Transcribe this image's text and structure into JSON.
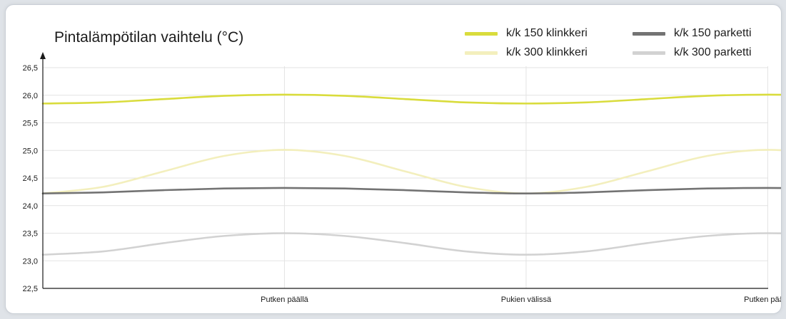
{
  "chart_data": {
    "type": "line",
    "title": "Pintalämpötilan vaihtelu (°C)",
    "xlabel": "",
    "ylabel": "",
    "ylim": [
      22.5,
      26.5
    ],
    "yticks": [
      "26,5",
      "26,0",
      "25,5",
      "25,0",
      "24,5",
      "24,0",
      "23,5",
      "23,0",
      "22,5"
    ],
    "categories": [
      "Putken päällä",
      "Pukien välissä",
      "Putken päällä"
    ],
    "x_range": [
      0,
      6
    ],
    "category_x": [
      1,
      2,
      3
    ],
    "grid": true,
    "legend": "top-right",
    "series": [
      {
        "name": "k/k 150 klinkkeri",
        "color": "#d9dc3c",
        "x": [
          0,
          0.25,
          0.5,
          0.75,
          1,
          1.25,
          1.5,
          1.75,
          2,
          2.25,
          2.5,
          2.75,
          3,
          3.25,
          3.5,
          3.75,
          4
        ],
        "values": [
          25.85,
          25.87,
          25.93,
          25.99,
          26.01,
          25.99,
          25.93,
          25.87,
          25.85,
          25.87,
          25.93,
          25.99,
          26.01,
          25.99,
          25.93,
          25.87,
          25.86
        ]
      },
      {
        "name": "k/k 300 klinkkeri",
        "color": "#f3efbd",
        "x": [
          0,
          0.25,
          0.5,
          0.75,
          1,
          1.25,
          1.5,
          1.75,
          2,
          2.25,
          2.5,
          2.75,
          3,
          3.25,
          3.5,
          3.75,
          4
        ],
        "values": [
          24.22,
          24.34,
          24.62,
          24.9,
          25.01,
          24.9,
          24.62,
          24.34,
          24.22,
          24.34,
          24.62,
          24.9,
          25.01,
          24.9,
          24.62,
          24.34,
          24.22
        ]
      },
      {
        "name": "k/k 150 parketti",
        "color": "#737373",
        "x": [
          0,
          0.25,
          0.5,
          0.75,
          1,
          1.25,
          1.5,
          1.75,
          2,
          2.25,
          2.5,
          2.75,
          3,
          3.25,
          3.5,
          3.75,
          4
        ],
        "values": [
          24.22,
          24.24,
          24.28,
          24.31,
          24.32,
          24.31,
          24.28,
          24.24,
          24.22,
          24.24,
          24.28,
          24.31,
          24.32,
          24.31,
          24.28,
          24.24,
          24.22
        ]
      },
      {
        "name": "k/k 300 parketti",
        "color": "#d2d2d2",
        "x": [
          0,
          0.25,
          0.5,
          0.75,
          1,
          1.25,
          1.5,
          1.75,
          2,
          2.25,
          2.5,
          2.75,
          3,
          3.25,
          3.5,
          3.75,
          4
        ],
        "values": [
          23.11,
          23.17,
          23.32,
          23.45,
          23.5,
          23.45,
          23.32,
          23.17,
          23.11,
          23.17,
          23.32,
          23.45,
          23.5,
          23.45,
          23.32,
          23.17,
          23.11
        ]
      }
    ]
  }
}
